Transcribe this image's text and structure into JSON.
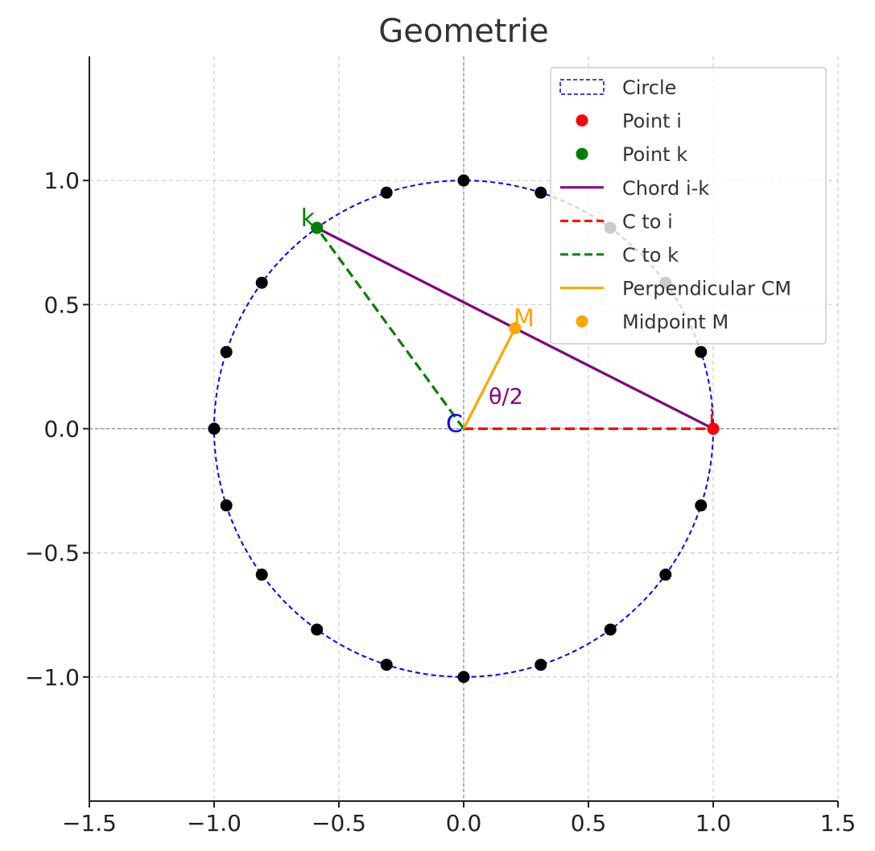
{
  "chart_data": {
    "type": "line",
    "title": "Geometrie",
    "xlabel": "",
    "ylabel": "",
    "xlim": [
      -1.5,
      1.5
    ],
    "ylim": [
      -1.5,
      1.5
    ],
    "x_ticks": [
      -1.5,
      -1.0,
      -0.5,
      0.0,
      0.5,
      1.0,
      1.5
    ],
    "x_tick_labels": [
      "−1.5",
      "−1.0",
      "−0.5",
      "0.0",
      "0.5",
      "1.0",
      "1.5"
    ],
    "y_ticks": [
      -1.0,
      -0.5,
      0.0,
      0.5,
      1.0
    ],
    "y_tick_labels": [
      "−1.0",
      "−0.5",
      "0.0",
      "0.5",
      "1.0"
    ],
    "grid": true,
    "legend_position": "upper-right",
    "circle": {
      "center": [
        0,
        0
      ],
      "radius": 1,
      "color": "#0000ff",
      "style": "dashed"
    },
    "polygon_points": [
      [
        1.0,
        0.0
      ],
      [
        0.951,
        0.309
      ],
      [
        0.809,
        0.588
      ],
      [
        0.588,
        0.809
      ],
      [
        0.309,
        0.951
      ],
      [
        0.0,
        1.0
      ],
      [
        -0.309,
        0.951
      ],
      [
        -0.588,
        0.809
      ],
      [
        -0.809,
        0.588
      ],
      [
        -0.951,
        0.309
      ],
      [
        -1.0,
        0.0
      ],
      [
        -0.951,
        -0.309
      ],
      [
        -0.809,
        -0.588
      ],
      [
        -0.588,
        -0.809
      ],
      [
        -0.309,
        -0.951
      ],
      [
        0.0,
        -1.0
      ],
      [
        0.309,
        -0.951
      ],
      [
        0.588,
        -0.809
      ],
      [
        0.809,
        -0.588
      ],
      [
        0.951,
        -0.309
      ]
    ],
    "polygon_point_color": "#000000",
    "points": {
      "C": {
        "x": 0.0,
        "y": 0.0,
        "label": "C",
        "color": "#0000ff"
      },
      "i": {
        "x": 1.0,
        "y": 0.0,
        "label": "i",
        "color": "#ff0000"
      },
      "k": {
        "x": -0.588,
        "y": 0.809,
        "label": "k",
        "color": "#008000"
      },
      "M": {
        "x": 0.206,
        "y": 0.405,
        "label": "M",
        "color": "#ffa500"
      }
    },
    "series": [
      {
        "name": "Chord i-k",
        "x": [
          1.0,
          -0.588
        ],
        "y": [
          0.0,
          0.809
        ],
        "color": "#800080",
        "style": "solid"
      },
      {
        "name": "C to i",
        "x": [
          0.0,
          1.0
        ],
        "y": [
          0.0,
          0.0
        ],
        "color": "#ff0000",
        "style": "dashed"
      },
      {
        "name": "C to k",
        "x": [
          0.0,
          -0.588
        ],
        "y": [
          0.0,
          0.809
        ],
        "color": "#008000",
        "style": "dashed"
      },
      {
        "name": "Perpendicular CM",
        "x": [
          0.0,
          0.206
        ],
        "y": [
          0.0,
          0.405
        ],
        "color": "#ffa500",
        "style": "solid"
      }
    ],
    "angle_annotation": {
      "text": "θ/2",
      "x": 0.1,
      "y": 0.1,
      "color": "#800080"
    },
    "legend": [
      {
        "label": "Circle",
        "kind": "patch-dashed",
        "color": "#0000ff"
      },
      {
        "label": "Point i",
        "kind": "marker",
        "color": "#ff0000"
      },
      {
        "label": "Point k",
        "kind": "marker",
        "color": "#008000"
      },
      {
        "label": "Chord i-k",
        "kind": "line",
        "color": "#800080"
      },
      {
        "label": "C to i",
        "kind": "line-dashed",
        "color": "#ff0000"
      },
      {
        "label": "C to k",
        "kind": "line-dashed",
        "color": "#008000"
      },
      {
        "label": "Perpendicular CM",
        "kind": "line",
        "color": "#ffa500"
      },
      {
        "label": "Midpoint M",
        "kind": "marker",
        "color": "#ffa500"
      }
    ]
  }
}
